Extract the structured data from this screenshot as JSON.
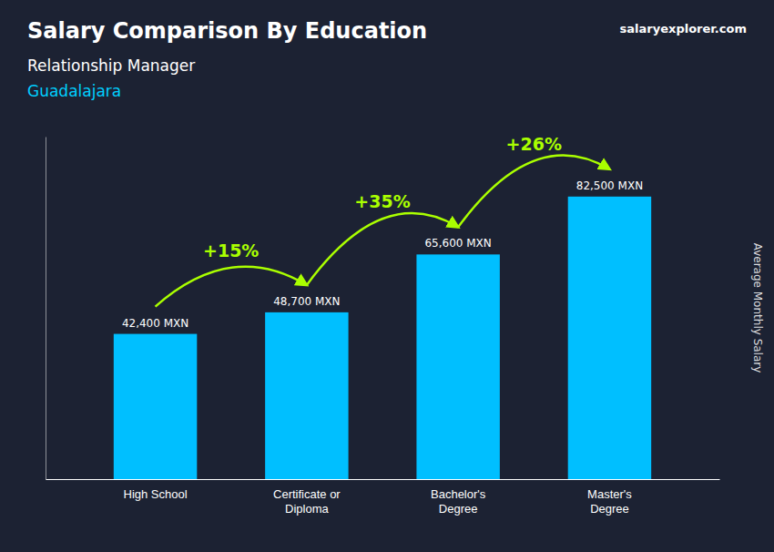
{
  "chart_data": {
    "type": "bar",
    "title": "Salary Comparison By Education",
    "subtitle": [
      "Relationship Manager",
      "Guadalajara"
    ],
    "source": "salaryexplorer.com",
    "y_label": "Average Monthly Salary",
    "categories": [
      "High School",
      "Certificate or\nDiploma",
      "Bachelor's\nDegree",
      "Master's\nDegree"
    ],
    "values": [
      42400,
      48700,
      65600,
      82500
    ],
    "value_labels": [
      "42,400 MXN",
      "48,700 MXN",
      "65,600 MXN",
      "82,500 MXN"
    ],
    "data_labels": true,
    "color": "#00BFFF",
    "annotations": [
      {
        "text": "+15%",
        "color": "#AAFF00"
      },
      {
        "text": "+35%",
        "color": "#AAFF00"
      },
      {
        "text": "+26%",
        "color": "#AAFF00"
      }
    ],
    "ylim": [
      0,
      100000
    ],
    "tick_labels": "x",
    "grid": false
  }
}
